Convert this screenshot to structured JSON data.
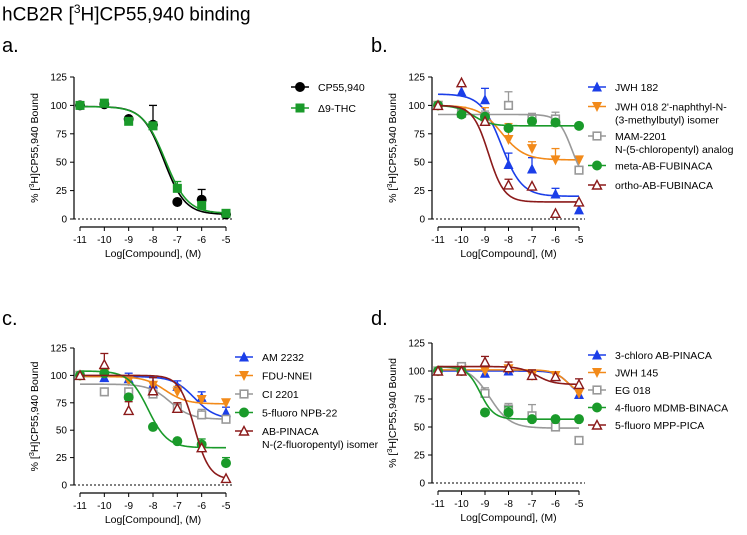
{
  "title": {
    "pre": "hCB2R [",
    "sup": "3",
    "post": "H]CP55,940 binding"
  },
  "chart_data": [
    {
      "panel": "a.",
      "type": "line",
      "xlabel": "Log[Compound], (M)",
      "ylabel_pre": "% [",
      "ylabel_sup": "3",
      "ylabel_post": "H]CP55,940 Bound",
      "xlim": [
        -11,
        -5
      ],
      "ylim": [
        0,
        125
      ],
      "xticks": [
        -11,
        -10,
        -9,
        -8,
        -7,
        -6,
        -5
      ],
      "yticks": [
        0,
        25,
        50,
        75,
        100,
        125
      ],
      "series": [
        {
          "name": "CP55,940",
          "color": "#000000",
          "marker": "circle",
          "x": [
            -11,
            -10,
            -9,
            -8,
            -7,
            -6,
            -5
          ],
          "y": [
            100,
            101,
            88,
            83,
            15,
            17,
            4
          ],
          "err": [
            0,
            0,
            0,
            17,
            0,
            9,
            0
          ],
          "fit": {
            "top": 99,
            "bottom": 4,
            "logec50": -7.55,
            "hill": 1.0
          }
        },
        {
          "name": "Δ9-THC",
          "color": "#1a9a2a",
          "marker": "square",
          "x": [
            -11,
            -10,
            -9,
            -8,
            -7,
            -6,
            -5
          ],
          "y": [
            100,
            102,
            86,
            82,
            27,
            12,
            5
          ],
          "err": [
            0,
            0,
            0,
            0,
            6,
            0,
            0
          ],
          "fit": {
            "top": 99,
            "bottom": 5,
            "logec50": -7.5,
            "hill": 0.95
          }
        }
      ]
    },
    {
      "panel": "b.",
      "type": "line",
      "xlabel": "Log[Compound], (M)",
      "ylabel_pre": "% [",
      "ylabel_sup": "3",
      "ylabel_post": "H]CP55,940 Bound",
      "xlim": [
        -11,
        -5
      ],
      "ylim": [
        0,
        125
      ],
      "xticks": [
        -11,
        -10,
        -9,
        -8,
        -7,
        -6,
        -5
      ],
      "yticks": [
        0,
        25,
        50,
        75,
        100,
        125
      ],
      "series": [
        {
          "name": "JWH 182",
          "legend_lines": [
            "JWH 182"
          ],
          "color": "#1b3ee8",
          "marker": "triangle-up",
          "x": [
            -11,
            -10,
            -9,
            -8,
            -7,
            -6,
            -5
          ],
          "y": [
            100,
            112,
            105,
            48,
            44,
            22,
            8
          ],
          "err": [
            0,
            5,
            10,
            10,
            10,
            5,
            0
          ],
          "fit": {
            "top": 110,
            "bottom": 20,
            "logec50": -8.3,
            "hill": 1.0
          }
        },
        {
          "name": "JWH 018 2'-naphthyl-N-(3-methylbutyl) isomer",
          "legend_lines": [
            "JWH 018 2'-naphthyl-N-",
            "(3-methylbutyl) isomer"
          ],
          "color": "#f28a1a",
          "marker": "triangle-down",
          "x": [
            -11,
            -10,
            -9,
            -8,
            -7,
            -6,
            -5
          ],
          "y": [
            100,
            95,
            90,
            70,
            62,
            52,
            52
          ],
          "err": [
            0,
            0,
            8,
            14,
            6,
            10,
            0
          ],
          "fit": {
            "top": 100,
            "bottom": 52,
            "logec50": -8.3,
            "hill": 0.9
          }
        },
        {
          "name": "MAM-2201 N-(5-chloropentyl) analog",
          "legend_lines": [
            "MAM-2201",
            "N-(5-chloropentyl) analog"
          ],
          "color": "#999999",
          "marker": "square-open",
          "x": [
            -11,
            -10,
            -9,
            -8,
            -7,
            -6,
            -5
          ],
          "y": [
            100,
            93,
            90,
            100,
            88,
            88,
            43
          ],
          "err": [
            0,
            0,
            5,
            12,
            5,
            6,
            0
          ],
          "fit": {
            "top": 92,
            "bottom": 30,
            "logec50": -5.3,
            "hill": 1.5
          }
        },
        {
          "name": "meta-AB-FUBINACA",
          "legend_lines": [
            "meta-AB-FUBINACA"
          ],
          "color": "#1a9a2a",
          "marker": "circle",
          "x": [
            -11,
            -10,
            -9,
            -8,
            -7,
            -6,
            -5
          ],
          "y": [
            100,
            92,
            90,
            80,
            86,
            85,
            82
          ],
          "err": [
            0,
            0,
            0,
            0,
            0,
            0,
            0
          ],
          "fit": {
            "top": 100,
            "bottom": 82,
            "logec50": -9.5,
            "hill": 1.2
          }
        },
        {
          "name": "ortho-AB-FUBINACA",
          "legend_lines": [
            "ortho-AB-FUBINACA"
          ],
          "color": "#8b1a1a",
          "marker": "triangle-up-open",
          "x": [
            -11,
            -10,
            -9,
            -8,
            -7,
            -6,
            -5
          ],
          "y": [
            100,
            120,
            86,
            30,
            29,
            5,
            15
          ],
          "err": [
            0,
            0,
            0,
            5,
            0,
            0,
            0
          ],
          "fit": {
            "top": 100,
            "bottom": 15,
            "logec50": -8.85,
            "hill": 1.3
          }
        }
      ]
    },
    {
      "panel": "c.",
      "type": "line",
      "xlabel": "Log[Compound], (M)",
      "ylabel_pre": "% [",
      "ylabel_sup": "3",
      "ylabel_post": "H]CP55,940 Bound",
      "xlim": [
        -11,
        -5
      ],
      "ylim": [
        0,
        125
      ],
      "xticks": [
        -11,
        -10,
        -9,
        -8,
        -7,
        -6,
        -5
      ],
      "yticks": [
        0,
        25,
        50,
        75,
        100,
        125
      ],
      "series": [
        {
          "name": "AM 2232",
          "legend_lines": [
            "AM 2232"
          ],
          "color": "#1b3ee8",
          "marker": "triangle-up",
          "x": [
            -11,
            -10,
            -9,
            -8,
            -7,
            -6,
            -5
          ],
          "y": [
            100,
            98,
            97,
            92,
            90,
            80,
            66
          ],
          "err": [
            0,
            0,
            5,
            6,
            5,
            5,
            5
          ],
          "fit": {
            "top": 99,
            "bottom": 60,
            "logec50": -6.3,
            "hill": 1.0
          }
        },
        {
          "name": "FDU-NNEI",
          "legend_lines": [
            "FDU-NNEI"
          ],
          "color": "#f28a1a",
          "marker": "triangle-down",
          "x": [
            -11,
            -10,
            -9,
            -8,
            -7,
            -6,
            -5
          ],
          "y": [
            100,
            102,
            95,
            91,
            85,
            78,
            75
          ],
          "err": [
            0,
            0,
            0,
            0,
            5,
            0,
            0
          ],
          "fit": {
            "top": 99,
            "bottom": 74,
            "logec50": -7.5,
            "hill": 1.0
          }
        },
        {
          "name": "CI 2201",
          "legend_lines": [
            "CI 2201"
          ],
          "color": "#999999",
          "marker": "square-open",
          "x": [
            -11,
            -10,
            -9,
            -8,
            -7,
            -6,
            -5
          ],
          "y": [
            100,
            85,
            85,
            83,
            70,
            64,
            60
          ],
          "err": [
            0,
            0,
            0,
            0,
            5,
            5,
            0
          ],
          "fit": {
            "top": 92,
            "bottom": 60,
            "logec50": -7.3,
            "hill": 1.0
          }
        },
        {
          "name": "5-fluoro NPB-22",
          "legend_lines": [
            "5-fluoro NPB-22"
          ],
          "color": "#1a9a2a",
          "marker": "circle",
          "x": [
            -11,
            -10,
            -9,
            -8,
            -7,
            -6,
            -5
          ],
          "y": [
            100,
            102,
            80,
            53,
            40,
            37,
            20
          ],
          "err": [
            0,
            0,
            0,
            0,
            0,
            5,
            5
          ],
          "fit": {
            "top": 104,
            "bottom": 34,
            "logec50": -8.2,
            "hill": 1.1
          }
        },
        {
          "name": "AB-PINACA N-(2-fluoropentyl) isomer",
          "legend_lines": [
            "AB-PINACA",
            "N-(2-fluoropentyl) isomer"
          ],
          "color": "#8b1a1a",
          "marker": "triangle-up-open",
          "x": [
            -11,
            -10,
            -9,
            -8,
            -7,
            -6,
            -5
          ],
          "y": [
            100,
            110,
            68,
            86,
            70,
            34,
            6
          ],
          "err": [
            0,
            10,
            8,
            12,
            5,
            0,
            0
          ],
          "fit": {
            "top": 100,
            "bottom": 5,
            "logec50": -6.3,
            "hill": 1.4
          }
        }
      ]
    },
    {
      "panel": "d.",
      "type": "line",
      "xlabel": "Log[Compound], (M)",
      "ylabel_pre": "% [",
      "ylabel_sup": "3",
      "ylabel_post": "H]CP55,940 Bound",
      "xlim": [
        -11,
        -5
      ],
      "ylim": [
        0,
        125
      ],
      "xticks": [
        -11,
        -10,
        -9,
        -8,
        -7,
        -6,
        -5
      ],
      "yticks": [
        0,
        25,
        50,
        75,
        100,
        125
      ],
      "series": [
        {
          "name": "3-chloro AB-PINACA",
          "legend_lines": [
            "3-chloro AB-PINACA"
          ],
          "color": "#1b3ee8",
          "marker": "triangle-up",
          "x": [
            -11,
            -10,
            -9,
            -8,
            -7,
            -6,
            -5
          ],
          "y": [
            100,
            100,
            98,
            100,
            96,
            95,
            79
          ],
          "err": [
            0,
            0,
            0,
            5,
            0,
            0,
            5
          ],
          "fit": {
            "top": 100,
            "bottom": 76,
            "logec50": -5.4,
            "hill": 1.5
          }
        },
        {
          "name": "JWH 145",
          "legend_lines": [
            "JWH 145"
          ],
          "color": "#f28a1a",
          "marker": "triangle-down",
          "x": [
            -11,
            -10,
            -9,
            -8,
            -7,
            -6,
            -5
          ],
          "y": [
            100,
            102,
            100,
            102,
            96,
            96,
            80
          ],
          "err": [
            0,
            0,
            0,
            0,
            0,
            0,
            0
          ],
          "fit": {
            "top": 101,
            "bottom": 79,
            "logec50": -5.5,
            "hill": 1.5
          }
        },
        {
          "name": "EG 018",
          "legend_lines": [
            "EG 018"
          ],
          "color": "#999999",
          "marker": "square-open",
          "x": [
            -11,
            -10,
            -9,
            -8,
            -7,
            -6,
            -5
          ],
          "y": [
            100,
            104,
            80,
            66,
            60,
            50,
            38
          ],
          "err": [
            0,
            0,
            5,
            5,
            10,
            5,
            0
          ],
          "fit": {
            "top": 104,
            "bottom": 49,
            "logec50": -8.8,
            "hill": 1.0
          }
        },
        {
          "name": "4-fluoro MDMB-BINACA",
          "legend_lines": [
            "4-fluoro MDMB-BINACA"
          ],
          "color": "#1a9a2a",
          "marker": "circle",
          "x": [
            -11,
            -10,
            -9,
            -8,
            -7,
            -6,
            -5
          ],
          "y": [
            100,
            100,
            63,
            63,
            57,
            57,
            57
          ],
          "err": [
            0,
            0,
            0,
            5,
            0,
            0,
            0
          ],
          "fit": {
            "top": 104,
            "bottom": 57,
            "logec50": -9.2,
            "hill": 1.5
          }
        },
        {
          "name": "5-fluoro MPP-PICA",
          "legend_lines": [
            "5-fluoro MPP-PICA"
          ],
          "color": "#8b1a1a",
          "marker": "triangle-up-open",
          "x": [
            -11,
            -10,
            -9,
            -8,
            -7,
            -6,
            -5
          ],
          "y": [
            100,
            100,
            108,
            103,
            96,
            95,
            88
          ],
          "err": [
            0,
            0,
            5,
            5,
            5,
            0,
            5
          ],
          "fit": {
            "top": 104,
            "bottom": 88,
            "logec50": -6.8,
            "hill": 1.2
          }
        }
      ]
    }
  ]
}
